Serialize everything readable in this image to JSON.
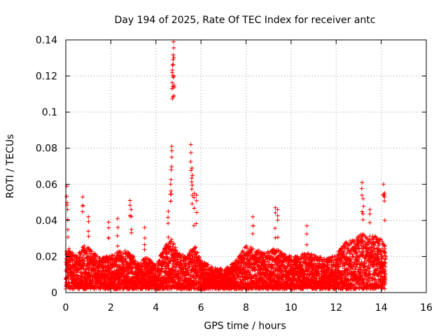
{
  "chart_data": {
    "type": "scatter",
    "title": "Day 194 of 2025, Rate Of TEC Index for receiver antc",
    "xlabel": "GPS time / hours",
    "ylabel": "ROTI / TECUs",
    "xlim": [
      0,
      16
    ],
    "ylim": [
      0,
      0.14
    ],
    "xticks": [
      0,
      2,
      4,
      6,
      8,
      10,
      12,
      14,
      16
    ],
    "xtick_labels": [
      "0",
      "2",
      "4",
      "6",
      "8",
      "10",
      "12",
      "14",
      "16"
    ],
    "yticks": [
      0,
      0.02,
      0.04,
      0.06,
      0.08,
      0.1,
      0.12,
      0.14
    ],
    "ytick_labels": [
      "0",
      "0.02",
      "0.04",
      "0.06",
      "0.08",
      "0.1",
      "0.12",
      "0.14"
    ],
    "grid": true,
    "marker": "+",
    "color": "#ff0000",
    "series": [
      {
        "name": "ROTI",
        "sampling": "one sample every 0.005 h from 0 to 14.2 h; values read off the plot",
        "envelope": {
          "x": [
            0,
            0.1,
            0.5,
            0.8,
            1.2,
            1.6,
            2.0,
            2.5,
            2.9,
            3.2,
            3.6,
            4.0,
            4.4,
            4.7,
            5.0,
            5.4,
            5.7,
            6.0,
            6.5,
            7.0,
            7.5,
            8.0,
            8.4,
            8.8,
            9.3,
            9.8,
            10.2,
            10.7,
            11.2,
            11.6,
            12.0,
            12.4,
            12.8,
            13.2,
            13.6,
            14.0,
            14.2
          ],
          "y": [
            0.022,
            0.025,
            0.02,
            0.027,
            0.023,
            0.019,
            0.021,
            0.024,
            0.022,
            0.016,
            0.02,
            0.015,
            0.026,
            0.03,
            0.022,
            0.02,
            0.028,
            0.018,
            0.014,
            0.013,
            0.017,
            0.026,
            0.025,
            0.022,
            0.026,
            0.021,
            0.02,
            0.023,
            0.02,
            0.019,
            0.021,
            0.028,
            0.03,
            0.033,
            0.032,
            0.03,
            0.026
          ]
        },
        "peaks": [
          {
            "x": 0.05,
            "y": 0.059
          },
          {
            "x": 0.08,
            "y": 0.046
          },
          {
            "x": 0.75,
            "y": 0.053
          },
          {
            "x": 1.0,
            "y": 0.042
          },
          {
            "x": 1.9,
            "y": 0.039
          },
          {
            "x": 2.3,
            "y": 0.041
          },
          {
            "x": 2.85,
            "y": 0.051
          },
          {
            "x": 2.9,
            "y": 0.046
          },
          {
            "x": 3.5,
            "y": 0.036
          },
          {
            "x": 4.55,
            "y": 0.045
          },
          {
            "x": 4.65,
            "y": 0.06
          },
          {
            "x": 4.68,
            "y": 0.068
          },
          {
            "x": 4.7,
            "y": 0.081
          },
          {
            "x": 4.72,
            "y": 0.122
          },
          {
            "x": 4.74,
            "y": 0.126
          },
          {
            "x": 4.76,
            "y": 0.129
          },
          {
            "x": 4.78,
            "y": 0.139
          },
          {
            "x": 4.8,
            "y": 0.12
          },
          {
            "x": 5.55,
            "y": 0.082
          },
          {
            "x": 5.6,
            "y": 0.069
          },
          {
            "x": 5.62,
            "y": 0.065
          },
          {
            "x": 5.7,
            "y": 0.055
          },
          {
            "x": 5.8,
            "y": 0.054
          },
          {
            "x": 8.3,
            "y": 0.042
          },
          {
            "x": 9.3,
            "y": 0.047
          },
          {
            "x": 9.4,
            "y": 0.046
          },
          {
            "x": 10.7,
            "y": 0.037
          },
          {
            "x": 13.15,
            "y": 0.061
          },
          {
            "x": 13.2,
            "y": 0.052
          },
          {
            "x": 13.5,
            "y": 0.046
          },
          {
            "x": 14.1,
            "y": 0.06
          },
          {
            "x": 14.15,
            "y": 0.055
          }
        ]
      }
    ]
  }
}
